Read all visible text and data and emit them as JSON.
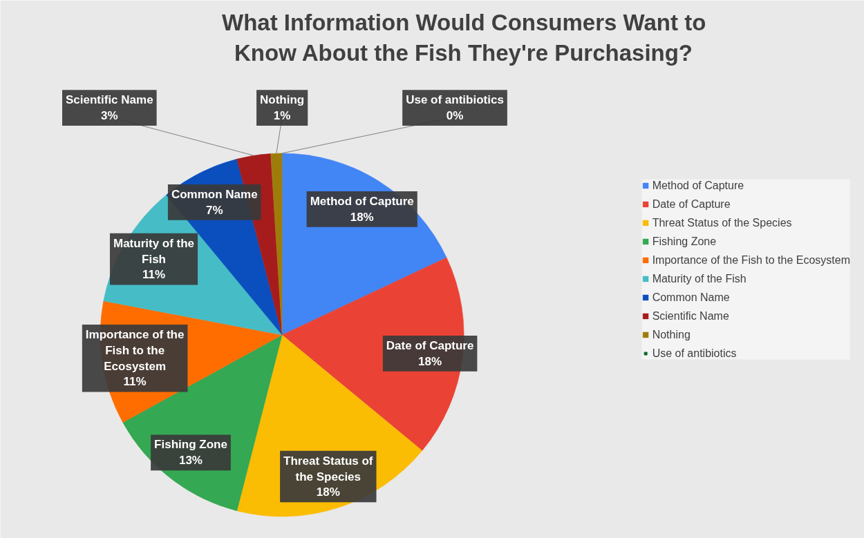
{
  "chart_data": {
    "type": "pie",
    "title": "What Information Would Consumers Want to Know About the Fish They're Purchasing?",
    "categories": [
      "Method of Capture",
      "Date of Capture",
      "Threat Status of the Species",
      "Fishing Zone",
      "Importance of the Fish to the Ecosystem",
      "Maturity of the Fish",
      "Common Name",
      "Scientific Name",
      "Nothing",
      "Use of antibiotics"
    ],
    "values": [
      18,
      18,
      18,
      13,
      11,
      11,
      7,
      3,
      1,
      0
    ],
    "value_labels": [
      "18%",
      "18%",
      "18%",
      "13%",
      "11%",
      "11%",
      "7%",
      "3%",
      "1%",
      "0%"
    ],
    "colors": [
      "#4285f4",
      "#ea4335",
      "#fbbc04",
      "#34a853",
      "#ff6d01",
      "#46bdc6",
      "#0b4fbf",
      "#a61c1c",
      "#9e7c0c",
      "#0b6b2a"
    ],
    "legend": "right"
  }
}
